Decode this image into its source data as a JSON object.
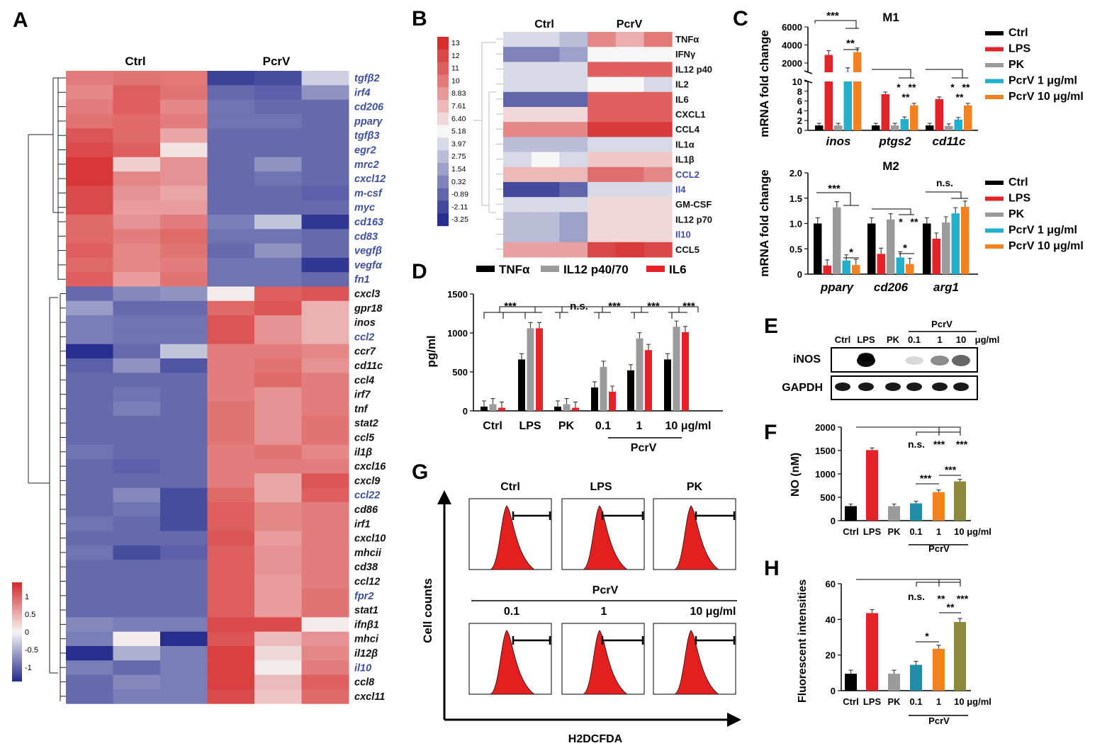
{
  "figure_colors": {
    "heat_red": "#d62d2d",
    "heat_white": "#f6f6f6",
    "heat_blue": "#272e8e",
    "ctrl": "#000000",
    "lps": "#e42228",
    "pk": "#9b9b9b",
    "pcrv1": "#21b0cc",
    "pcrv10": "#f28122",
    "olive": "#8a8a3a",
    "teal": "#1f8ea6"
  },
  "chart_data": [
    {
      "panel": "A",
      "type": "heatmap",
      "group_labels": [
        "Ctrl",
        "PcrV"
      ],
      "colorbar": {
        "ticks": [
          "1",
          "0.5",
          "0",
          "-0.5",
          "-1"
        ],
        "range": [
          -1,
          1
        ]
      },
      "rows": [
        {
          "gene": "tgfβ2",
          "blue": true,
          "values": [
            0.6,
            0.65,
            0.62,
            -0.9,
            -0.85,
            -0.2
          ]
        },
        {
          "gene": "irf4",
          "blue": true,
          "values": [
            0.55,
            0.75,
            0.65,
            -0.7,
            -0.75,
            -0.5
          ]
        },
        {
          "gene": "cd206",
          "blue": true,
          "values": [
            0.6,
            0.75,
            0.55,
            -0.65,
            -0.7,
            -0.7
          ]
        },
        {
          "gene": "pparγ",
          "blue": true,
          "values": [
            0.65,
            0.7,
            0.6,
            -0.65,
            -0.65,
            -0.7
          ]
        },
        {
          "gene": "tgfβ3",
          "blue": true,
          "values": [
            0.8,
            0.7,
            0.4,
            -0.7,
            -0.7,
            -0.7
          ]
        },
        {
          "gene": "egr2",
          "blue": true,
          "values": [
            0.85,
            0.75,
            0.1,
            -0.7,
            -0.7,
            -0.7
          ]
        },
        {
          "gene": "mrc2",
          "blue": true,
          "values": [
            0.95,
            0.2,
            0.5,
            -0.7,
            -0.5,
            -0.7
          ]
        },
        {
          "gene": "cxcl12",
          "blue": true,
          "values": [
            0.95,
            0.55,
            0.5,
            -0.7,
            -0.65,
            -0.7
          ]
        },
        {
          "gene": "m-csf",
          "blue": true,
          "values": [
            0.85,
            0.5,
            0.4,
            -0.7,
            -0.7,
            -0.75
          ]
        },
        {
          "gene": "myc",
          "blue": true,
          "values": [
            0.85,
            0.45,
            0.45,
            -0.7,
            -0.7,
            -0.7
          ]
        },
        {
          "gene": "cd163",
          "blue": true,
          "values": [
            0.7,
            0.5,
            0.6,
            -0.6,
            -0.25,
            -0.95
          ]
        },
        {
          "gene": "cd83",
          "blue": true,
          "values": [
            0.7,
            0.6,
            0.7,
            -0.65,
            -0.65,
            -0.7
          ]
        },
        {
          "gene": "vegfβ",
          "blue": true,
          "values": [
            0.75,
            0.55,
            0.65,
            -0.7,
            -0.5,
            -0.7
          ]
        },
        {
          "gene": "vegfα",
          "blue": true,
          "values": [
            0.7,
            0.55,
            0.6,
            -0.65,
            -0.65,
            -0.95
          ]
        },
        {
          "gene": "fn1",
          "blue": true,
          "values": [
            0.75,
            0.45,
            0.65,
            -0.65,
            -0.65,
            -0.7
          ]
        },
        {
          "gene": "cxcl3",
          "blue": false,
          "values": [
            -0.7,
            -0.55,
            -0.5,
            0.05,
            0.75,
            0.8
          ]
        },
        {
          "gene": "gpr18",
          "blue": false,
          "values": [
            -0.45,
            -0.7,
            -0.7,
            0.7,
            0.8,
            0.35
          ]
        },
        {
          "gene": "inos",
          "blue": false,
          "values": [
            -0.6,
            -0.65,
            -0.65,
            0.8,
            0.5,
            0.35
          ]
        },
        {
          "gene": "ccl2",
          "blue": true,
          "values": [
            -0.6,
            -0.65,
            -0.65,
            0.8,
            0.5,
            0.35
          ]
        },
        {
          "gene": "ccr7",
          "blue": false,
          "values": [
            -1,
            -0.7,
            -0.25,
            0.6,
            0.6,
            0.55
          ]
        },
        {
          "gene": "cd11c",
          "blue": false,
          "values": [
            -0.75,
            -0.5,
            -0.8,
            0.6,
            0.65,
            0.5
          ]
        },
        {
          "gene": "ccl4",
          "blue": false,
          "values": [
            -0.7,
            -0.7,
            -0.7,
            0.6,
            0.7,
            0.6
          ]
        },
        {
          "gene": "irf7",
          "blue": false,
          "values": [
            -0.7,
            -0.65,
            -0.7,
            0.6,
            0.5,
            0.6
          ]
        },
        {
          "gene": "tnf",
          "blue": false,
          "values": [
            -0.7,
            -0.6,
            -0.7,
            0.65,
            0.5,
            0.6
          ]
        },
        {
          "gene": "stat2",
          "blue": false,
          "values": [
            -0.7,
            -0.7,
            -0.7,
            0.65,
            0.5,
            0.65
          ]
        },
        {
          "gene": "ccl5",
          "blue": false,
          "values": [
            -0.7,
            -0.7,
            -0.7,
            0.65,
            0.5,
            0.65
          ]
        },
        {
          "gene": "il1β",
          "blue": false,
          "values": [
            -0.65,
            -0.7,
            -0.7,
            0.6,
            0.65,
            0.55
          ]
        },
        {
          "gene": "cxcl16",
          "blue": false,
          "values": [
            -0.7,
            -0.75,
            -0.7,
            0.6,
            0.6,
            0.6
          ]
        },
        {
          "gene": "cxcl9",
          "blue": false,
          "values": [
            -0.7,
            -0.7,
            -0.7,
            0.6,
            0.4,
            0.8
          ]
        },
        {
          "gene": "ccl22",
          "blue": true,
          "values": [
            -0.7,
            -0.55,
            -0.85,
            0.7,
            0.4,
            0.75
          ]
        },
        {
          "gene": "cd86",
          "blue": false,
          "values": [
            -0.7,
            -0.65,
            -0.85,
            0.75,
            0.55,
            0.6
          ]
        },
        {
          "gene": "irf1",
          "blue": false,
          "values": [
            -0.65,
            -0.7,
            -0.85,
            0.75,
            0.55,
            0.6
          ]
        },
        {
          "gene": "cxcl10",
          "blue": false,
          "values": [
            -0.7,
            -0.7,
            -0.7,
            0.8,
            0.45,
            0.6
          ]
        },
        {
          "gene": "mhcii",
          "blue": false,
          "values": [
            -0.65,
            -0.85,
            -0.75,
            0.75,
            0.5,
            0.6
          ]
        },
        {
          "gene": "cd38",
          "blue": false,
          "values": [
            -0.7,
            -0.7,
            -0.7,
            0.75,
            0.5,
            0.6
          ]
        },
        {
          "gene": "ccl12",
          "blue": false,
          "values": [
            -0.7,
            -0.7,
            -0.7,
            0.75,
            0.45,
            0.6
          ]
        },
        {
          "gene": "fpr2",
          "blue": true,
          "values": [
            -0.7,
            -0.7,
            -0.7,
            0.75,
            0.45,
            0.65
          ]
        },
        {
          "gene": "stat1",
          "blue": false,
          "values": [
            -0.7,
            -0.7,
            -0.7,
            0.75,
            0.45,
            0.65
          ]
        },
        {
          "gene": "ifnβ1",
          "blue": false,
          "values": [
            -0.55,
            -0.6,
            -0.6,
            0.85,
            0.85,
            0.05
          ]
        },
        {
          "gene": "mhci",
          "blue": false,
          "values": [
            -0.6,
            0.05,
            -1,
            0.8,
            0.3,
            0.5
          ]
        },
        {
          "gene": "il12β",
          "blue": false,
          "values": [
            -1,
            -0.35,
            -0.6,
            0.9,
            0.15,
            0.55
          ]
        },
        {
          "gene": "il10",
          "blue": true,
          "values": [
            -0.6,
            -0.7,
            -0.6,
            0.9,
            0.05,
            0.6
          ]
        },
        {
          "gene": "ccl8",
          "blue": false,
          "values": [
            -0.7,
            -0.55,
            -0.6,
            0.9,
            0.3,
            0.75
          ]
        },
        {
          "gene": "cxcl11",
          "blue": false,
          "values": [
            -0.7,
            -0.6,
            -0.6,
            0.85,
            0.25,
            0.7
          ]
        }
      ]
    },
    {
      "panel": "B",
      "type": "heatmap",
      "group_labels": [
        "Ctrl",
        "PcrV"
      ],
      "colorbar": {
        "ticks": [
          "13",
          "12",
          "11",
          "10",
          "8.83",
          "7.61",
          "6.40",
          "5.18",
          "3.97",
          "2.75",
          "1.54",
          "0.32",
          "-0.89",
          "-2.11",
          "-3.25"
        ]
      },
      "rows": [
        {
          "name": "TNFα",
          "blue": false,
          "values": [
            3.97,
            3.97,
            2.75,
            9.5,
            8.0,
            10.0
          ]
        },
        {
          "name": "IFNγ",
          "blue": false,
          "values": [
            0.32,
            0.32,
            1.54,
            5.18,
            5.18,
            5.18
          ]
        },
        {
          "name": "IL12 p40",
          "blue": false,
          "values": [
            3.97,
            3.97,
            3.97,
            11,
            11,
            11
          ]
        },
        {
          "name": "IL2",
          "blue": false,
          "values": [
            3.97,
            3.97,
            3.97,
            5.18,
            5.18,
            3.97
          ]
        },
        {
          "name": "IL6",
          "blue": false,
          "values": [
            -0.89,
            -0.89,
            -0.89,
            11,
            11,
            11
          ]
        },
        {
          "name": "CXCL1",
          "blue": false,
          "values": [
            6.4,
            6.4,
            6.4,
            11,
            11,
            11
          ]
        },
        {
          "name": "CCL4",
          "blue": false,
          "values": [
            9.5,
            9.5,
            9.5,
            12.5,
            12.5,
            12.5
          ]
        },
        {
          "name": "IL1α",
          "blue": false,
          "values": [
            2.75,
            2.75,
            2.75,
            3.97,
            3.97,
            3.97
          ]
        },
        {
          "name": "IL1β",
          "blue": false,
          "values": [
            3.97,
            5.18,
            3.97,
            7.0,
            7.0,
            7.0
          ]
        },
        {
          "name": "CCL2",
          "blue": true,
          "values": [
            7.61,
            7.61,
            7.61,
            10.5,
            10.5,
            9.5
          ]
        },
        {
          "name": "Il4",
          "blue": true,
          "values": [
            -2.11,
            -2.11,
            -0.89,
            3.97,
            3.97,
            3.97
          ]
        },
        {
          "name": "GM-CSF",
          "blue": false,
          "values": [
            3.97,
            3.97,
            3.97,
            6.4,
            6.4,
            6.4
          ]
        },
        {
          "name": "IL12 p70",
          "blue": false,
          "values": [
            2.75,
            2.75,
            1.54,
            6.4,
            6.4,
            6.4
          ]
        },
        {
          "name": "Il10",
          "blue": true,
          "values": [
            2.75,
            2.75,
            1.54,
            6.4,
            6.4,
            6.4
          ]
        },
        {
          "name": "CCL5",
          "blue": false,
          "values": [
            8.5,
            8.5,
            8.5,
            12,
            12.5,
            12
          ]
        }
      ]
    },
    {
      "panel": "C",
      "subtitle": "M1",
      "type": "bar",
      "ylabel": "mRNA fold change",
      "y_ticks_top": [
        "6000",
        "4000",
        "2000"
      ],
      "y_ticks_bottom": [
        "10",
        "8",
        "6",
        "4",
        "2",
        "0"
      ],
      "categories": [
        "inos",
        "ptgs2",
        "cd11c"
      ],
      "series": [
        {
          "name": "Ctrl",
          "values": [
            1,
            1,
            1
          ]
        },
        {
          "name": "LPS",
          "values": [
            2900,
            7.4,
            6.4
          ]
        },
        {
          "name": "PK",
          "values": [
            1,
            1,
            0.9
          ]
        },
        {
          "name": "PcrV 1 μg/ml",
          "values": [
            1000,
            2.3,
            2.2
          ]
        },
        {
          "name": "PcrV 10 μg/ml",
          "values": [
            3200,
            5.1,
            5.1
          ]
        }
      ],
      "annotations": [
        "***",
        "**",
        "*",
        "**",
        "**",
        "*",
        "**",
        "**"
      ]
    },
    {
      "panel": "C",
      "subtitle": "M2",
      "type": "bar",
      "ylabel": "mRNA fold change",
      "ylim": [
        0,
        2.0
      ],
      "y_ticks": [
        "2.0",
        "1.5",
        "1.0",
        "0.5",
        "0"
      ],
      "categories": [
        "pparγ",
        "cd206",
        "arg1"
      ],
      "series": [
        {
          "name": "Ctrl",
          "values": [
            1.0,
            1.0,
            1.0
          ]
        },
        {
          "name": "LPS",
          "values": [
            0.17,
            0.4,
            0.7
          ]
        },
        {
          "name": "PK",
          "values": [
            1.32,
            1.08,
            1.02
          ]
        },
        {
          "name": "PcrV 1 μg/ml",
          "values": [
            0.27,
            0.33,
            1.2
          ]
        },
        {
          "name": "PcrV 10 μg/ml",
          "values": [
            0.18,
            0.2,
            1.33
          ]
        }
      ],
      "annotations": [
        "***",
        "*",
        "*",
        "**",
        "*",
        "n.s."
      ]
    },
    {
      "panel": "D",
      "type": "bar",
      "ylabel": "pg/ml",
      "ylim": [
        0,
        1500
      ],
      "y_ticks": [
        "1500",
        "1000",
        "500",
        "0"
      ],
      "categories": [
        "Ctrl",
        "LPS",
        "PK",
        "0.1",
        "1",
        "10 μg/ml"
      ],
      "group_label": "PcrV",
      "series": [
        {
          "name": "TNFα",
          "values": [
            55,
            660,
            55,
            300,
            520,
            660
          ]
        },
        {
          "name": "IL12 p40/70",
          "values": [
            85,
            1060,
            85,
            565,
            930,
            1080
          ]
        },
        {
          "name": "IL6",
          "values": [
            40,
            1060,
            40,
            245,
            780,
            1010
          ]
        }
      ],
      "annotations": [
        "***",
        "n.s.",
        "***",
        "***",
        "***"
      ]
    },
    {
      "panel": "F",
      "type": "bar",
      "ylabel": "NO (nM)",
      "ylim": [
        0,
        2000
      ],
      "y_ticks": [
        "2000",
        "1500",
        "1000",
        "500",
        "0"
      ],
      "categories": [
        "Ctrl",
        "LPS",
        "PK",
        "0.1",
        "1",
        "10 μg/ml"
      ],
      "group_label": "PcrV",
      "values": [
        310,
        1510,
        310,
        370,
        610,
        840
      ],
      "annotations": [
        "n.s.",
        "***",
        "***",
        "***",
        "***"
      ]
    },
    {
      "panel": "H",
      "type": "bar",
      "ylabel": "Fluorescent intensities",
      "ylim": [
        0,
        60
      ],
      "y_ticks": [
        "60",
        "40",
        "20",
        "0"
      ],
      "categories": [
        "Ctrl",
        "LPS",
        "PK",
        "0.1",
        "1",
        "10 μg/ml"
      ],
      "group_label": "PcrV",
      "values": [
        9.5,
        43.5,
        9.5,
        14.5,
        23.5,
        38.5
      ],
      "annotations": [
        "n.s.",
        "**",
        "***",
        "**",
        "*"
      ]
    },
    {
      "panel": "G",
      "type": "histogram",
      "xlabel": "H2DCFDA",
      "ylabel": "Cell counts",
      "row1_labels": [
        "Ctrl",
        "LPS",
        "PK"
      ],
      "row2_title": "PcrV",
      "row2_labels": [
        "0.1",
        "1",
        "10 μg/ml"
      ]
    }
  ],
  "panels": {
    "A": {
      "letter": "A",
      "ctrl": "Ctrl",
      "pcrv": "PcrV"
    },
    "B": {
      "letter": "B",
      "ctrl": "Ctrl",
      "pcrv": "PcrV"
    },
    "C": {
      "letter": "C",
      "m1": "M1",
      "m2": "M2",
      "ylabel": "mRNA fold change",
      "legend": [
        "Ctrl",
        "LPS",
        "PK",
        "PcrV 1 μg/ml",
        "PcrV 10 μg/ml"
      ]
    },
    "D": {
      "letter": "D",
      "legend": [
        "TNFα",
        "IL12 p40/70",
        "IL6"
      ],
      "ylabel": "pg/ml",
      "pcrv": "PcrV"
    },
    "E": {
      "letter": "E",
      "pcrv": "PcrV",
      "lanes": [
        "Ctrl",
        "LPS",
        "PK",
        "0.1",
        "1",
        "10"
      ],
      "unit": "μg/ml",
      "bands": [
        "iNOS",
        "GAPDH"
      ]
    },
    "F": {
      "letter": "F",
      "ylabel": "NO (nM)",
      "pcrv": "PcrV"
    },
    "G": {
      "letter": "G"
    },
    "H": {
      "letter": "H",
      "ylabel": "Fluorescent intensities",
      "pcrv": "PcrV"
    }
  }
}
